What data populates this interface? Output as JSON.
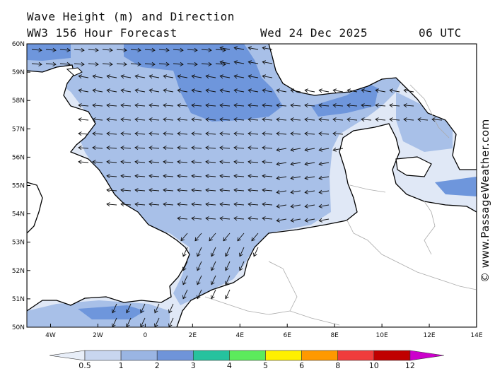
{
  "header": {
    "title": "Wave Height (m) and Direction",
    "model_line": "WW3 156 Hour Forecast",
    "date": "Wed 24 Dec 2025",
    "time": "06 UTC"
  },
  "credit": "© www.PassageWeather.com",
  "map": {
    "lat_labels": [
      "60N",
      "59N",
      "58N",
      "57N",
      "56N",
      "55N",
      "54N",
      "53N",
      "52N",
      "51N",
      "50N"
    ],
    "lon_labels": [
      "4W",
      "2W",
      "0",
      "2E",
      "4E",
      "6E",
      "8E",
      "10E",
      "12E",
      "14E"
    ],
    "lat_range": [
      50,
      60
    ],
    "lon_range": [
      -5,
      14
    ],
    "colors": {
      "land": "#ffffff",
      "coast": "#000000",
      "border": "#aaaaaa",
      "arrow": "#111111",
      "band_0_5_1": "#e0e8f6",
      "band_1_2": "#a8c0e8",
      "band_2_3": "#6e96dc"
    }
  },
  "legend": {
    "labels": [
      "0.5",
      "1",
      "2",
      "3",
      "4",
      "5",
      "6",
      "8",
      "10",
      "12"
    ],
    "colors": [
      "#e8eef8",
      "#c8d6ef",
      "#9ab5e3",
      "#6f94d9",
      "#26c29e",
      "#5ceb5c",
      "#fff000",
      "#ff9900",
      "#f03c3c",
      "#c00000",
      "#cc00cc"
    ]
  }
}
